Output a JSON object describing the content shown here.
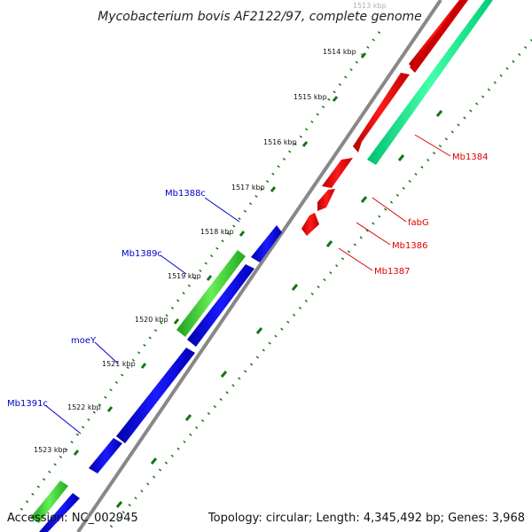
{
  "title": "Mycobacterium bovis AF2122/97, complete genome",
  "ticks": [
    {
      "label": "1513 kbp",
      "faded": true
    },
    {
      "label": "1514 kbp"
    },
    {
      "label": "1515 kbp"
    },
    {
      "label": "1516 kbp"
    },
    {
      "label": "1517 kbp"
    },
    {
      "label": "1518 kbp"
    },
    {
      "label": "1519 kbp"
    },
    {
      "label": "1520 kbp"
    },
    {
      "label": "1521 kbp"
    },
    {
      "label": "1522 kbp"
    },
    {
      "label": "1523 kbp"
    }
  ],
  "genes_left": [
    {
      "name": "Mb1388c",
      "color": "#0000cc"
    },
    {
      "name": "Mb1389c",
      "color": "#0000cc"
    },
    {
      "name": "moeY",
      "color": "#0000cc"
    },
    {
      "name": "Mb1391c",
      "color": "#0000cc"
    }
  ],
  "genes_right": [
    {
      "name": "Mb1384",
      "color": "#dd0000"
    },
    {
      "name": "fabG",
      "color": "#dd0000"
    },
    {
      "name": "Mb1386",
      "color": "#dd0000"
    },
    {
      "name": "Mb1387",
      "color": "#dd0000"
    }
  ],
  "colors": {
    "forward_gene": "#ee0000",
    "reverse_gene": "#0000ee",
    "rna_forward": "#00ee88",
    "rna_reverse": "#33cc33",
    "backbone": "#888888",
    "tick_dots": "#117711"
  },
  "footer": {
    "accession": "Accession: NC_002945",
    "summary": "Topology: circular; Length: 4,345,492 bp; Genes: 3,968"
  }
}
